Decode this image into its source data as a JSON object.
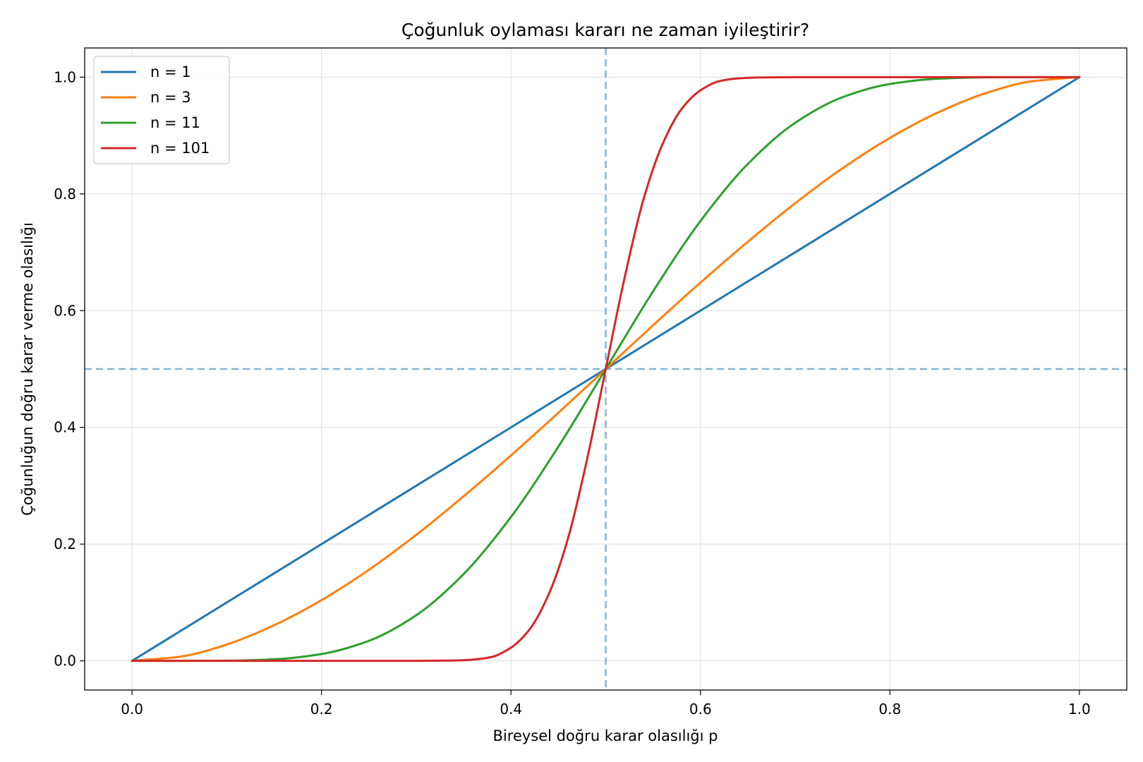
{
  "chart_data": {
    "type": "line",
    "title": "Çoğunluk oylaması kararı ne zaman iyileştirir?",
    "xlabel": "Bireysel doğru karar olasılığı p",
    "ylabel": "Çoğunluğun doğru karar verme olasılığı",
    "xlim": [
      -0.05,
      1.05
    ],
    "ylim": [
      -0.05,
      1.05
    ],
    "xticks": [
      0.0,
      0.2,
      0.4,
      0.6,
      0.8,
      1.0
    ],
    "xtick_labels": [
      "0.0",
      "0.2",
      "0.4",
      "0.6",
      "0.8",
      "1.0"
    ],
    "yticks": [
      0.0,
      0.2,
      0.4,
      0.6,
      0.8,
      1.0
    ],
    "ytick_labels": [
      "0.0",
      "0.2",
      "0.4",
      "0.6",
      "0.8",
      "1.0"
    ],
    "grid": true,
    "legend_position": "upper-left",
    "reference_lines": {
      "vertical_x": 0.5,
      "horizontal_y": 0.5,
      "style": "dashed",
      "color": "#1f77b4"
    },
    "series": [
      {
        "name": "n = 1",
        "color": "#1f77b4",
        "x": [
          0.0,
          0.05,
          0.1,
          0.15,
          0.2,
          0.25,
          0.3,
          0.35,
          0.4,
          0.45,
          0.5,
          0.55,
          0.6,
          0.65,
          0.7,
          0.75,
          0.8,
          0.85,
          0.9,
          0.95,
          1.0
        ],
        "y": [
          0.0,
          0.05,
          0.1,
          0.15,
          0.2,
          0.25,
          0.3,
          0.35,
          0.4,
          0.45,
          0.5,
          0.55,
          0.6,
          0.65,
          0.7,
          0.75,
          0.8,
          0.85,
          0.9,
          0.95,
          1.0
        ]
      },
      {
        "name": "n = 3",
        "color": "#ff7f0e",
        "x": [
          0.0,
          0.05,
          0.1,
          0.15,
          0.2,
          0.25,
          0.3,
          0.35,
          0.4,
          0.45,
          0.5,
          0.55,
          0.6,
          0.65,
          0.7,
          0.75,
          0.8,
          0.85,
          0.9,
          0.95,
          1.0
        ],
        "y": [
          0.0,
          0.007,
          0.028,
          0.061,
          0.104,
          0.156,
          0.216,
          0.282,
          0.352,
          0.425,
          0.5,
          0.575,
          0.648,
          0.718,
          0.784,
          0.844,
          0.896,
          0.939,
          0.972,
          0.993,
          1.0
        ]
      },
      {
        "name": "n = 11",
        "color": "#2ca02c",
        "x": [
          0.0,
          0.05,
          0.1,
          0.15,
          0.2,
          0.25,
          0.3,
          0.35,
          0.4,
          0.45,
          0.5,
          0.55,
          0.6,
          0.65,
          0.7,
          0.75,
          0.8,
          0.85,
          0.9,
          0.95,
          1.0
        ],
        "y": [
          0.0,
          0.0,
          0.0003,
          0.0027,
          0.0117,
          0.0343,
          0.0782,
          0.1487,
          0.2465,
          0.3669,
          0.5,
          0.6331,
          0.7535,
          0.8513,
          0.9218,
          0.9657,
          0.9883,
          0.9973,
          0.9997,
          1.0,
          1.0
        ]
      },
      {
        "name": "n = 101",
        "color": "#d62728",
        "x": [
          0.0,
          0.3,
          0.34,
          0.36,
          0.38,
          0.4,
          0.42,
          0.44,
          0.46,
          0.48,
          0.5,
          0.52,
          0.54,
          0.56,
          0.58,
          0.6,
          0.62,
          0.64,
          0.66,
          0.7,
          1.0
        ],
        "y": [
          0.0,
          0.0,
          0.0006,
          0.0022,
          0.0068,
          0.0226,
          0.0546,
          0.1147,
          0.2086,
          0.3431,
          0.5,
          0.6569,
          0.7914,
          0.8853,
          0.9454,
          0.9774,
          0.9932,
          0.9978,
          0.9994,
          1.0,
          1.0
        ]
      }
    ]
  }
}
